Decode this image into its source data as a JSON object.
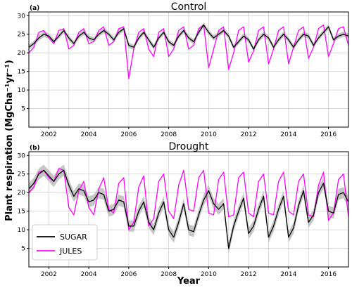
{
  "chart_data": {
    "type": "line",
    "xlabel": "Year",
    "ylabel": "Plant respiration (MgCha⁻¹yr⁻¹)",
    "xlim": [
      2001.0,
      2017.0
    ],
    "ylim": [
      0,
      31
    ],
    "yticks": [
      5,
      10,
      15,
      20,
      25,
      30
    ],
    "xtick_labels": [
      "2002",
      "2004",
      "2006",
      "2008",
      "2010",
      "2012",
      "2014",
      "2016"
    ],
    "year_gridlines": [
      2002,
      2003,
      2004,
      2005,
      2006,
      2007,
      2008,
      2009,
      2010,
      2011,
      2012,
      2013,
      2014,
      2015,
      2016
    ],
    "grid": true,
    "legend": {
      "placement": "lower-left",
      "panel": "(b)",
      "entries": [
        "SUGAR",
        "JULES"
      ]
    },
    "colors": {
      "SUGAR": "#000000",
      "JULES": "#ff00ff",
      "uncertainty_band": "#b8b8b8"
    },
    "panels": [
      {
        "letter": "(a)",
        "title": "Control",
        "series": [
          {
            "name": "SUGAR",
            "x": [
              2001.0,
              2001.25,
              2001.5,
              2001.75,
              2002.0,
              2002.25,
              2002.5,
              2002.75,
              2003.0,
              2003.25,
              2003.5,
              2003.75,
              2004.0,
              2004.25,
              2004.5,
              2004.75,
              2005.0,
              2005.25,
              2005.5,
              2005.75,
              2006.0,
              2006.25,
              2006.5,
              2006.75,
              2007.0,
              2007.25,
              2007.5,
              2007.75,
              2008.0,
              2008.25,
              2008.5,
              2008.75,
              2009.0,
              2009.25,
              2009.5,
              2009.75,
              2010.0,
              2010.25,
              2010.5,
              2010.75,
              2011.0,
              2011.25,
              2011.5,
              2011.75,
              2012.0,
              2012.25,
              2012.5,
              2012.75,
              2013.0,
              2013.25,
              2013.5,
              2013.75,
              2014.0,
              2014.25,
              2014.5,
              2014.75,
              2015.0,
              2015.25,
              2015.5,
              2015.75,
              2016.0,
              2016.25,
              2016.5,
              2016.75,
              2017.0
            ],
            "y": [
              21.5,
              22.5,
              24.0,
              25.0,
              24.5,
              23.0,
              24.5,
              26.0,
              24.0,
              22.5,
              24.5,
              25.5,
              24.0,
              23.5,
              25.0,
              26.0,
              25.0,
              23.5,
              25.5,
              26.5,
              22.0,
              21.5,
              24.0,
              25.5,
              23.5,
              21.5,
              24.0,
              25.5,
              23.0,
              22.0,
              24.5,
              26.0,
              24.0,
              23.0,
              25.5,
              27.5,
              25.5,
              24.0,
              25.0,
              26.0,
              24.5,
              21.5,
              23.0,
              24.5,
              23.5,
              21.0,
              23.5,
              25.0,
              24.0,
              21.5,
              23.5,
              25.0,
              23.5,
              21.5,
              23.5,
              25.0,
              24.5,
              22.0,
              24.0,
              25.5,
              27.0,
              23.5,
              24.5,
              25.0,
              24.5
            ]
          },
          {
            "name": "JULES",
            "x": [
              2001.0,
              2001.25,
              2001.5,
              2001.75,
              2002.0,
              2002.25,
              2002.5,
              2002.75,
              2003.0,
              2003.25,
              2003.5,
              2003.75,
              2004.0,
              2004.25,
              2004.5,
              2004.75,
              2005.0,
              2005.25,
              2005.5,
              2005.75,
              2006.0,
              2006.25,
              2006.5,
              2006.75,
              2007.0,
              2007.25,
              2007.5,
              2007.75,
              2008.0,
              2008.25,
              2008.5,
              2008.75,
              2009.0,
              2009.25,
              2009.5,
              2009.75,
              2010.0,
              2010.25,
              2010.5,
              2010.75,
              2011.0,
              2011.25,
              2011.5,
              2011.75,
              2012.0,
              2012.25,
              2012.5,
              2012.75,
              2013.0,
              2013.25,
              2013.5,
              2013.75,
              2014.0,
              2014.25,
              2014.5,
              2014.75,
              2015.0,
              2015.25,
              2015.5,
              2015.75,
              2016.0,
              2016.25,
              2016.5,
              2016.75,
              2017.0
            ],
            "y": [
              20.0,
              21.5,
              25.5,
              26.0,
              24.0,
              22.5,
              26.0,
              26.5,
              21.0,
              22.0,
              25.5,
              26.5,
              22.5,
              23.0,
              26.0,
              27.0,
              22.0,
              23.0,
              26.5,
              27.0,
              13.0,
              21.0,
              25.5,
              26.5,
              21.0,
              19.0,
              25.5,
              26.5,
              19.0,
              21.0,
              26.0,
              27.0,
              21.0,
              22.0,
              26.5,
              27.5,
              16.0,
              21.0,
              26.0,
              27.0,
              15.5,
              20.0,
              26.0,
              27.0,
              17.5,
              20.5,
              26.0,
              27.0,
              17.0,
              21.0,
              26.0,
              27.0,
              17.0,
              21.5,
              26.0,
              27.0,
              18.5,
              21.5,
              26.5,
              27.5,
              19.0,
              22.5,
              26.5,
              27.0,
              22.0
            ]
          }
        ]
      },
      {
        "letter": "(b)",
        "title": "Drought",
        "series": [
          {
            "name": "SUGAR",
            "x": [
              2001.0,
              2001.25,
              2001.5,
              2001.75,
              2002.0,
              2002.25,
              2002.5,
              2002.75,
              2003.0,
              2003.25,
              2003.5,
              2003.75,
              2004.0,
              2004.25,
              2004.5,
              2004.75,
              2005.0,
              2005.25,
              2005.5,
              2005.75,
              2006.0,
              2006.25,
              2006.5,
              2006.75,
              2007.0,
              2007.25,
              2007.5,
              2007.75,
              2008.0,
              2008.25,
              2008.5,
              2008.75,
              2009.0,
              2009.25,
              2009.5,
              2009.75,
              2010.0,
              2010.25,
              2010.5,
              2010.75,
              2011.0,
              2011.25,
              2011.5,
              2011.75,
              2012.0,
              2012.25,
              2012.5,
              2012.75,
              2013.0,
              2013.25,
              2013.5,
              2013.75,
              2014.0,
              2014.25,
              2014.5,
              2014.75,
              2015.0,
              2015.25,
              2015.5,
              2015.75,
              2016.0,
              2016.25,
              2016.5,
              2016.75,
              2017.0
            ],
            "y": [
              21.0,
              22.5,
              25.0,
              26.0,
              24.5,
              23.0,
              25.0,
              26.0,
              22.0,
              19.0,
              21.0,
              20.5,
              17.5,
              18.0,
              20.0,
              19.5,
              15.0,
              15.5,
              18.0,
              17.5,
              11.0,
              11.0,
              15.0,
              17.5,
              12.0,
              10.0,
              14.5,
              17.5,
              10.0,
              8.0,
              12.0,
              17.0,
              10.0,
              9.5,
              14.0,
              18.0,
              20.5,
              17.0,
              15.5,
              17.0,
              5.0,
              11.0,
              15.0,
              18.5,
              9.0,
              11.0,
              15.5,
              19.0,
              8.0,
              11.0,
              15.5,
              19.0,
              8.0,
              10.5,
              16.5,
              20.5,
              12.0,
              14.0,
              20.0,
              22.5,
              15.0,
              14.5,
              19.5,
              20.0,
              17.5
            ]
          },
          {
            "name": "JULES",
            "x": [
              2001.0,
              2001.25,
              2001.5,
              2001.75,
              2002.0,
              2002.25,
              2002.5,
              2002.75,
              2003.0,
              2003.25,
              2003.5,
              2003.75,
              2004.0,
              2004.25,
              2004.5,
              2004.75,
              2005.0,
              2005.25,
              2005.5,
              2005.75,
              2006.0,
              2006.25,
              2006.5,
              2006.75,
              2007.0,
              2007.25,
              2007.5,
              2007.75,
              2008.0,
              2008.25,
              2008.5,
              2008.75,
              2009.0,
              2009.25,
              2009.5,
              2009.75,
              2010.0,
              2010.25,
              2010.5,
              2010.75,
              2011.0,
              2011.25,
              2011.5,
              2011.75,
              2012.0,
              2012.25,
              2012.5,
              2012.75,
              2013.0,
              2013.25,
              2013.5,
              2013.75,
              2014.0,
              2014.25,
              2014.5,
              2014.75,
              2015.0,
              2015.25,
              2015.5,
              2015.75,
              2016.0,
              2016.25,
              2016.5,
              2016.75,
              2017.0
            ],
            "y": [
              20.0,
              21.5,
              25.5,
              26.0,
              24.0,
              23.0,
              26.5,
              26.0,
              16.0,
              14.0,
              20.5,
              23.0,
              16.0,
              14.0,
              21.0,
              24.0,
              15.5,
              14.5,
              22.5,
              24.0,
              10.0,
              12.0,
              21.5,
              24.5,
              11.0,
              13.0,
              23.0,
              25.0,
              15.0,
              13.0,
              22.0,
              26.0,
              15.5,
              15.0,
              24.0,
              26.0,
              14.5,
              14.0,
              23.5,
              25.5,
              13.5,
              14.0,
              24.0,
              25.5,
              14.5,
              13.5,
              23.0,
              25.0,
              14.5,
              14.0,
              23.0,
              25.5,
              15.0,
              14.0,
              23.0,
              25.0,
              14.0,
              13.5,
              22.0,
              25.5,
              12.5,
              14.5,
              23.5,
              25.0,
              13.5
            ]
          }
        ]
      }
    ]
  }
}
